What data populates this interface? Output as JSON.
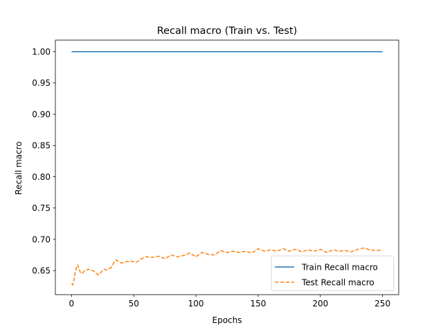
{
  "chart_data": {
    "type": "line",
    "title": "Recall macro (Train vs. Test)",
    "xlabel": "Epochs",
    "ylabel": "Recall macro",
    "xlim": [
      -13,
      263
    ],
    "ylim": [
      0.6115,
      1.0185
    ],
    "xticks": [
      0,
      50,
      100,
      150,
      200,
      250
    ],
    "yticks": [
      0.65,
      0.7,
      0.75,
      0.8,
      0.85,
      0.9,
      0.95,
      1.0
    ],
    "xtick_labels": [
      "0",
      "50",
      "100",
      "150",
      "200",
      "250"
    ],
    "ytick_labels": [
      "0.65",
      "0.70",
      "0.75",
      "0.80",
      "0.85",
      "0.90",
      "0.95",
      "1.00"
    ],
    "grid": false,
    "legend_position": "lower-right",
    "series": [
      {
        "name": "Train Recall macro",
        "color": "#1f77b4",
        "style": "solid",
        "x": [
          0,
          250
        ],
        "values": [
          1.0,
          1.0
        ]
      },
      {
        "name": "Test Recall macro",
        "color": "#ff7f0e",
        "style": "dashed",
        "x": [
          0,
          1,
          2,
          3,
          4,
          5,
          6,
          7,
          8,
          9,
          10,
          12,
          14,
          16,
          18,
          20,
          22,
          24,
          26,
          28,
          30,
          32,
          34,
          36,
          38,
          40,
          44,
          48,
          52,
          56,
          60,
          65,
          70,
          75,
          80,
          85,
          90,
          95,
          100,
          105,
          110,
          115,
          120,
          125,
          130,
          135,
          140,
          145,
          150,
          155,
          160,
          165,
          170,
          175,
          180,
          185,
          190,
          195,
          200,
          205,
          210,
          215,
          220,
          225,
          230,
          235,
          240,
          245,
          250
        ],
        "values": [
          0.629,
          0.627,
          0.636,
          0.648,
          0.656,
          0.659,
          0.652,
          0.648,
          0.645,
          0.646,
          0.649,
          0.651,
          0.652,
          0.651,
          0.649,
          0.645,
          0.643,
          0.648,
          0.652,
          0.651,
          0.653,
          0.655,
          0.663,
          0.667,
          0.664,
          0.662,
          0.664,
          0.665,
          0.663,
          0.669,
          0.672,
          0.671,
          0.673,
          0.669,
          0.675,
          0.672,
          0.674,
          0.678,
          0.672,
          0.679,
          0.676,
          0.675,
          0.682,
          0.679,
          0.681,
          0.679,
          0.681,
          0.678,
          0.685,
          0.681,
          0.683,
          0.681,
          0.685,
          0.681,
          0.684,
          0.68,
          0.683,
          0.681,
          0.684,
          0.679,
          0.683,
          0.681,
          0.682,
          0.68,
          0.684,
          0.686,
          0.683,
          0.682,
          0.683
        ]
      }
    ]
  }
}
